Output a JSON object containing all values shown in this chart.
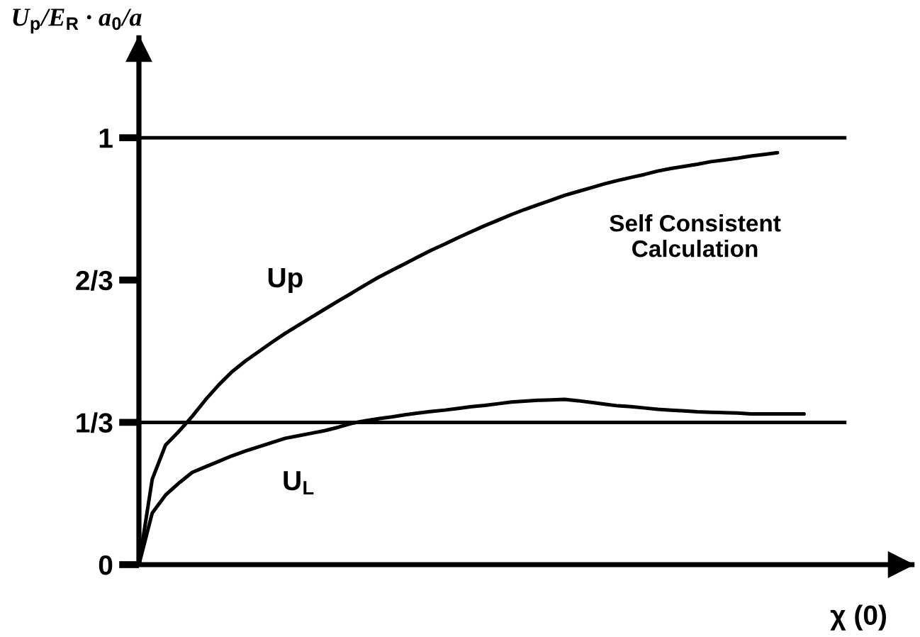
{
  "chart_data": {
    "type": "line",
    "ylabel": "U$_{p}$/E$_{R}$ · a$_{0}$/a",
    "xlabel": "χ (0)",
    "annotations": [
      "Self Consistent\nCalculation"
    ],
    "categories": [
      null,
      null,
      null,
      null,
      null,
      null,
      null,
      null,
      null,
      null,
      null,
      null,
      null,
      null,
      null,
      null,
      null,
      null,
      null,
      null,
      null,
      null,
      null,
      null,
      null,
      null,
      null,
      null,
      null,
      null,
      null,
      null,
      null,
      null,
      null,
      null,
      null,
      null,
      null,
      null,
      null,
      null,
      null,
      null,
      null,
      null,
      null,
      null,
      null,
      null,
      null
    ],
    "series": [
      {
        "name": "Up",
        "color": "#000000",
        "values": [
          0,
          0.2,
          0.28,
          0.312,
          0.347,
          0.386,
          0.421,
          0.452,
          0.477,
          0.499,
          0.521,
          0.542,
          0.561,
          0.58,
          0.599,
          0.618,
          0.636,
          0.655,
          0.673,
          0.689,
          0.705,
          0.721,
          0.737,
          0.751,
          0.766,
          0.78,
          0.794,
          0.807,
          0.82,
          0.832,
          0.843,
          0.854,
          0.865,
          0.874,
          0.883,
          0.892,
          0.9,
          0.907,
          0.914,
          0.922,
          0.928,
          0.933,
          0.938,
          0.944,
          0.948,
          0.952,
          0.957,
          0.961,
          0.965,
          null,
          null
        ]
      },
      {
        "name": "U$_{L}$",
        "color": "#000000",
        "values": [
          0,
          0.121,
          0.163,
          0.191,
          0.216,
          0.229,
          0.242,
          0.255,
          0.266,
          0.276,
          0.286,
          0.296,
          0.302,
          0.308,
          0.314,
          0.322,
          0.331,
          0.337,
          0.342,
          0.346,
          0.351,
          0.355,
          0.359,
          0.362,
          0.366,
          0.37,
          0.373,
          0.377,
          0.381,
          0.383,
          0.385,
          0.386,
          0.387,
          0.384,
          0.38,
          0.376,
          0.372,
          0.37,
          0.367,
          0.364,
          0.362,
          0.36,
          0.358,
          0.357,
          0.356,
          0.355,
          0.353,
          0.353,
          0.353,
          0.353,
          0.353
        ]
      }
    ],
    "ylim": [
      0,
      1.24
    ],
    "yticks": [
      0,
      {
        "value": 0.3333,
        "label": "1/3"
      },
      {
        "value": 0.6667,
        "label": "2/3"
      },
      1
    ],
    "ref_lines": [
      {
        "axis": "y",
        "value": 1,
        "label": null,
        "color": "#000000"
      },
      {
        "axis": "y",
        "value": 0.3333,
        "label": null,
        "color": "#000000"
      }
    ],
    "legend": false,
    "grid": false,
    "marker": "none",
    "line_style": "solid"
  }
}
